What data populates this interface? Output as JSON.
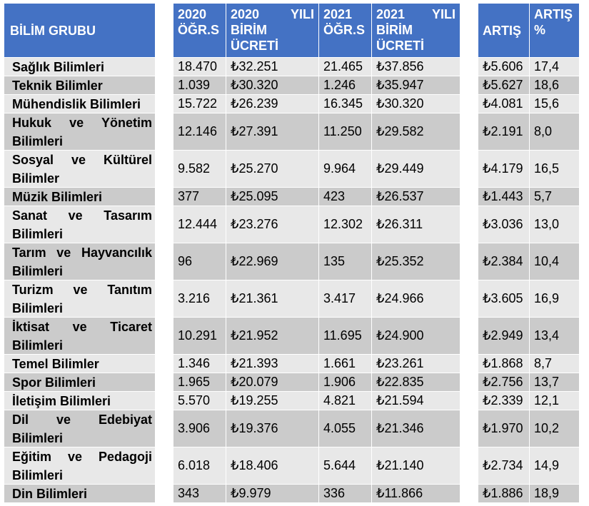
{
  "headers": {
    "group": "BİLİM GRUBU",
    "y2020_students": "2020 ÖĞR.S",
    "y2020_fee": "2020 YILI BİRİM ÜCRETİ",
    "y2021_students": "2021 ÖĞR.S",
    "y2021_fee": "2021 YILI BİRİM ÜCRETİ",
    "increase": "ARTIŞ",
    "increase_pct": "ARTIŞ %"
  },
  "rows": [
    {
      "name": "Sağlık Bilimleri",
      "s2020": "18.470",
      "f2020": "₺32.251",
      "s2021": "21.465",
      "f2021": "₺37.856",
      "inc": "₺5.606",
      "pct": "17,4"
    },
    {
      "name": "Teknik Bilimler",
      "s2020": "1.039",
      "f2020": "₺30.320",
      "s2021": "1.246",
      "f2021": "₺35.947",
      "inc": "₺5.627",
      "pct": "18,6"
    },
    {
      "name": "Mühendislik Bilimleri",
      "s2020": "15.722",
      "f2020": "₺26.239",
      "s2021": "16.345",
      "f2021": "₺30.320",
      "inc": "₺4.081",
      "pct": "15,6"
    },
    {
      "name": "Hukuk ve Yönetim Bilimleri",
      "s2020": "12.146",
      "f2020": "₺27.391",
      "s2021": "11.250",
      "f2021": "₺29.582",
      "inc": "₺2.191",
      "pct": "8,0"
    },
    {
      "name": "Sosyal ve Kültürel Bilimler",
      "s2020": "9.582",
      "f2020": "₺25.270",
      "s2021": "9.964",
      "f2021": "₺29.449",
      "inc": "₺4.179",
      "pct": "16,5"
    },
    {
      "name": "Müzik Bilimleri",
      "s2020": "377",
      "f2020": "₺25.095",
      "s2021": "423",
      "f2021": "₺26.537",
      "inc": "₺1.443",
      "pct": "5,7"
    },
    {
      "name": "Sanat ve Tasarım Bilimleri",
      "s2020": "12.444",
      "f2020": "₺23.276",
      "s2021": "12.302",
      "f2021": "₺26.311",
      "inc": "₺3.036",
      "pct": "13,0"
    },
    {
      "name": "Tarım ve Hayvancılık Bilimleri",
      "s2020": "96",
      "f2020": "₺22.969",
      "s2021": "135",
      "f2021": "₺25.352",
      "inc": "₺2.384",
      "pct": "10,4"
    },
    {
      "name": "Turizm ve Tanıtım Bilimleri",
      "s2020": "3.216",
      "f2020": "₺21.361",
      "s2021": "3.417",
      "f2021": "₺24.966",
      "inc": "₺3.605",
      "pct": "16,9"
    },
    {
      "name": "İktisat ve Ticaret Bilimleri",
      "s2020": "10.291",
      "f2020": "₺21.952",
      "s2021": "11.695",
      "f2021": "₺24.900",
      "inc": "₺2.949",
      "pct": "13,4"
    },
    {
      "name": "Temel Bilimler",
      "s2020": "1.346",
      "f2020": "₺21.393",
      "s2021": "1.661",
      "f2021": "₺23.261",
      "inc": "₺1.868",
      "pct": "8,7"
    },
    {
      "name": "Spor Bilimleri",
      "s2020": "1.965",
      "f2020": "₺20.079",
      "s2021": "1.906",
      "f2021": "₺22.835",
      "inc": "₺2.756",
      "pct": "13,7"
    },
    {
      "name": "İletişim Bilimleri",
      "s2020": "5.570",
      "f2020": "₺19.255",
      "s2021": "4.821",
      "f2021": "₺21.594",
      "inc": "₺2.339",
      "pct": "12,1"
    },
    {
      "name": "Dil ve Edebiyat Bilimleri",
      "s2020": "3.906",
      "f2020": "₺19.376",
      "s2021": "4.055",
      "f2021": "₺21.346",
      "inc": "₺1.970",
      "pct": "10,2"
    },
    {
      "name": "Eğitim ve Pedagoji Bilimleri",
      "s2020": "6.018",
      "f2020": "₺18.406",
      "s2021": "5.644",
      "f2021": "₺21.140",
      "inc": "₺2.734",
      "pct": "14,9"
    },
    {
      "name": "Din Bilimleri",
      "s2020": "343",
      "f2020": "₺9.979",
      "s2021": "336",
      "f2021": "₺11.866",
      "inc": "₺1.886",
      "pct": "18,9"
    }
  ],
  "colors": {
    "header": "#4472c4",
    "row_light": "#e8e8e8",
    "row_dark": "#cbcbcb"
  }
}
